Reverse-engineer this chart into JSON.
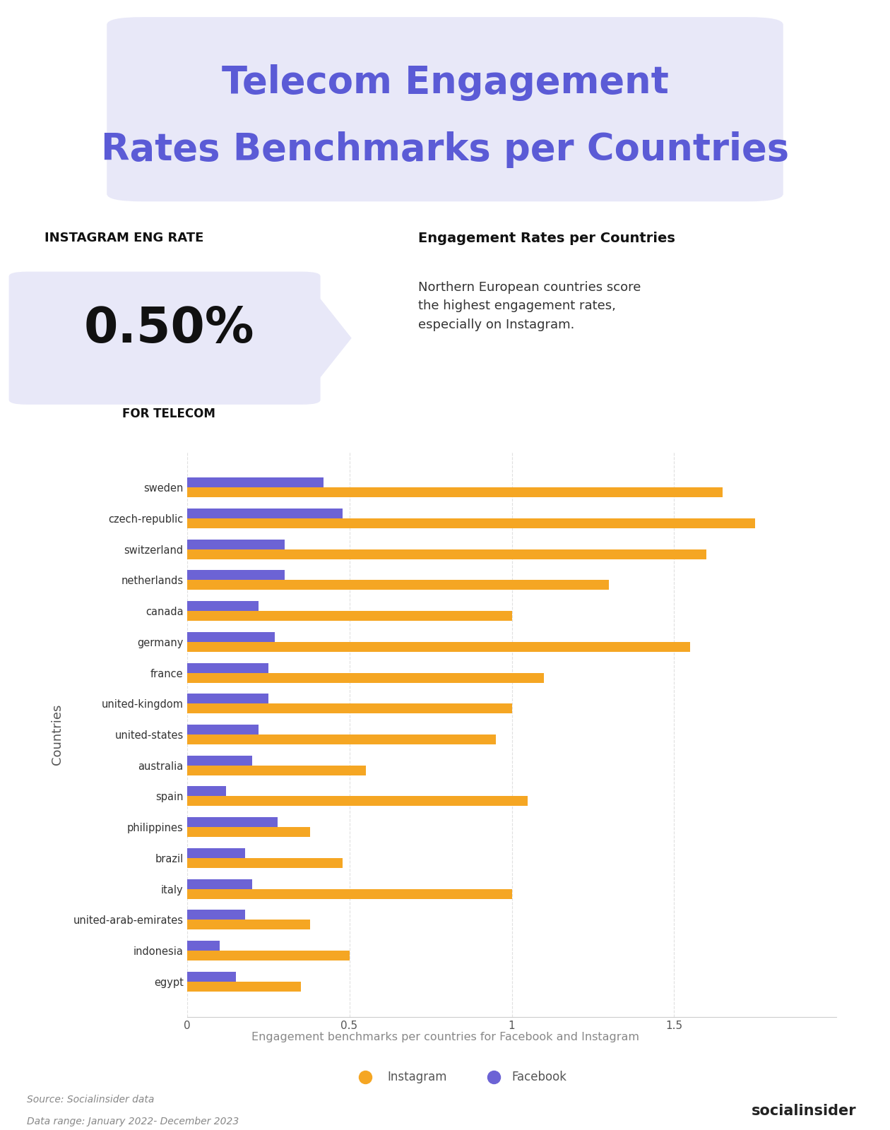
{
  "title_line1": "Telecom Engagement",
  "title_line2": "Rates Benchmarks per Countries",
  "title_color": "#5b5bd6",
  "title_bg_color": "#e8e8f8",
  "instagram_eng_rate_label": "INSTAGRAM ENG RATE",
  "instagram_eng_rate_value": "0.50%",
  "for_telecom_label": "FOR TELECOM",
  "engagement_title": "Engagement Rates per Countries",
  "engagement_desc": "Northern European countries score\nthe highest engagement rates,\nespecially on Instagram.",
  "chart_subtitle": "Engagement benchmarks per countries for Facebook and Instagram",
  "source_line1": "Source: Socialinsider data",
  "source_line2": "Data range: January 2022- December 2023",
  "countries": [
    "sweden",
    "czech-republic",
    "switzerland",
    "netherlands",
    "canada",
    "germany",
    "france",
    "united-kingdom",
    "united-states",
    "australia",
    "spain",
    "philippines",
    "brazil",
    "italy",
    "united-arab-emirates",
    "indonesia",
    "egypt"
  ],
  "instagram_values": [
    1.65,
    1.75,
    1.6,
    1.3,
    1.0,
    1.55,
    1.1,
    1.0,
    0.95,
    0.55,
    1.05,
    0.38,
    0.48,
    1.0,
    0.38,
    0.5,
    0.35
  ],
  "facebook_values": [
    0.42,
    0.48,
    0.3,
    0.3,
    0.22,
    0.27,
    0.25,
    0.25,
    0.22,
    0.2,
    0.12,
    0.28,
    0.18,
    0.2,
    0.18,
    0.1,
    0.15
  ],
  "instagram_color": "#f5a623",
  "facebook_color": "#6c63d5",
  "bg_color": "#ffffff",
  "axis_color": "#cccccc",
  "ylabel": "Countries",
  "xlim": [
    0,
    2.0
  ],
  "xticks": [
    0,
    0.5,
    1,
    1.5
  ],
  "grid_color": "#e0e0e0"
}
